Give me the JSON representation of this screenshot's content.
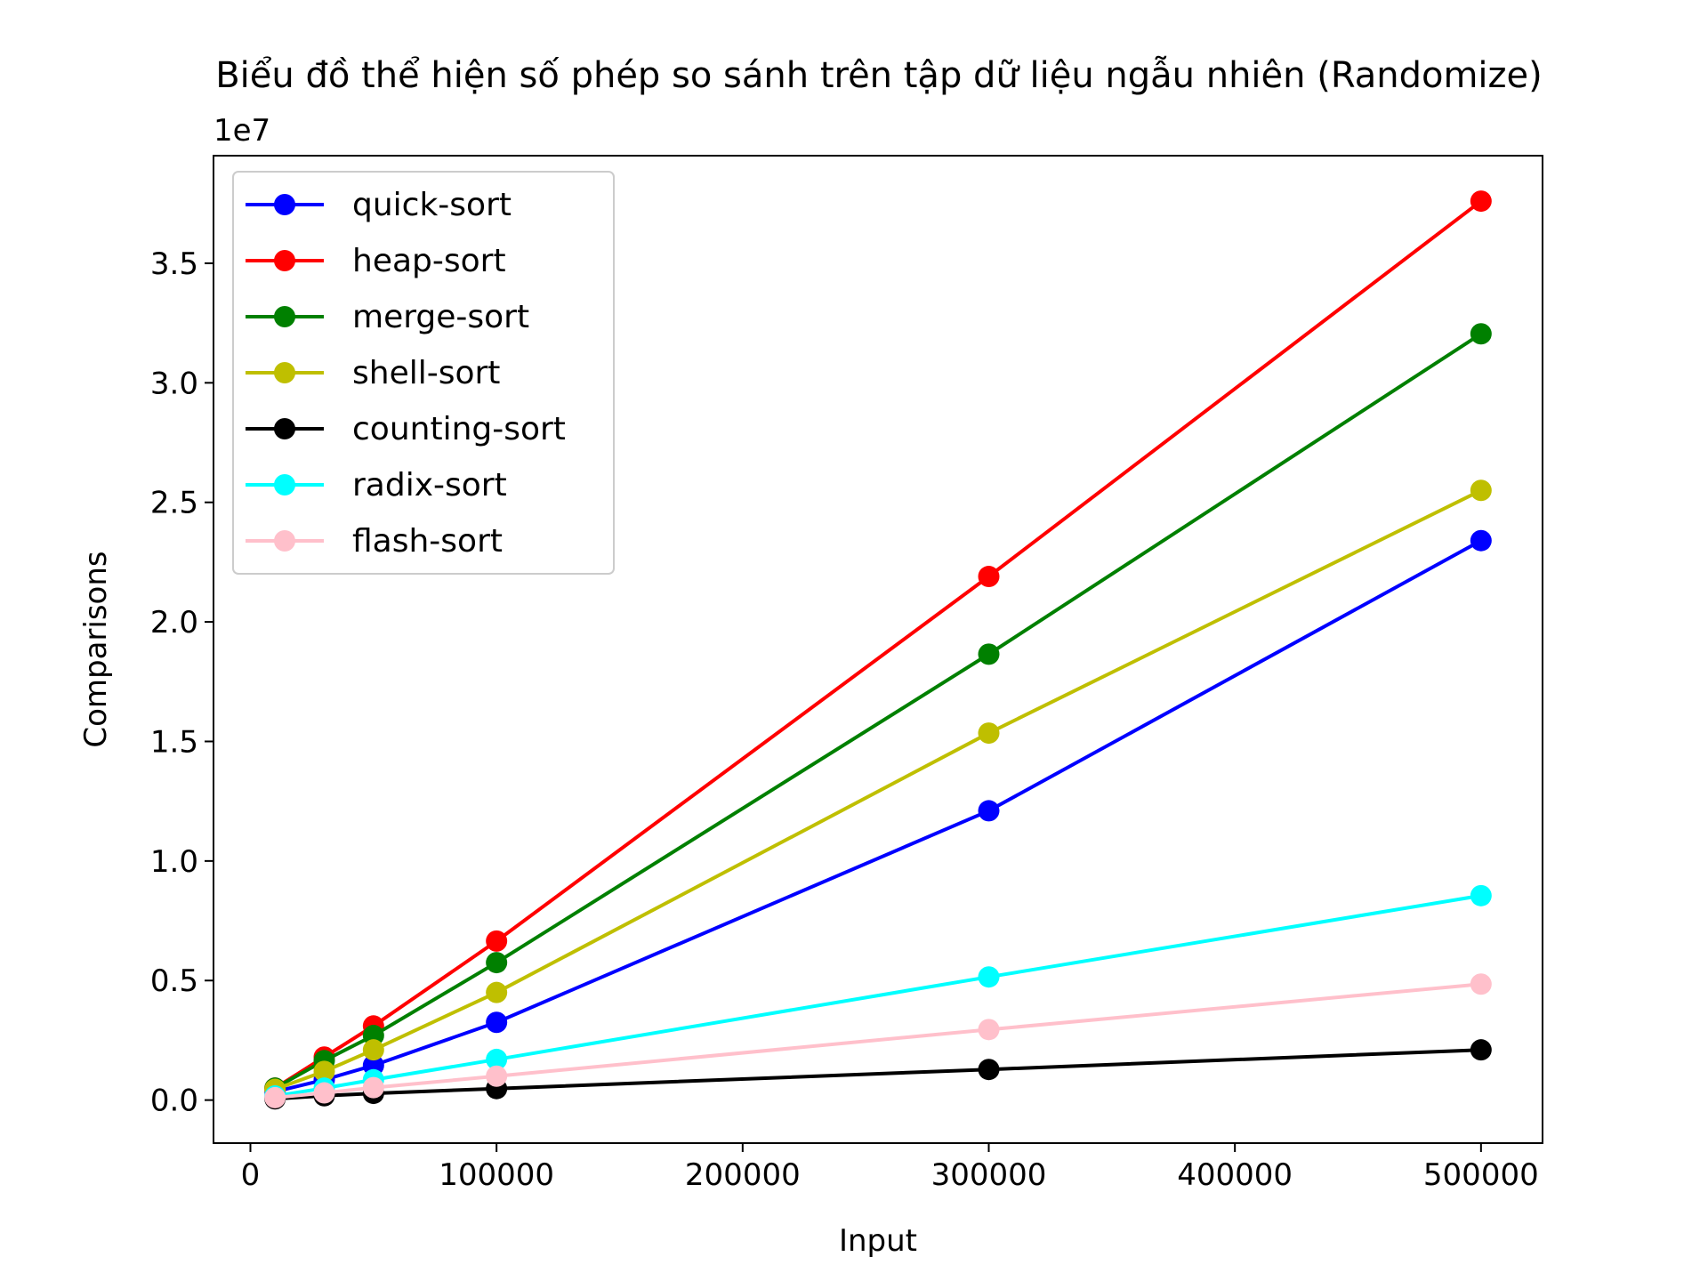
{
  "chart_data": {
    "type": "line",
    "title": "Biểu đồ thể hiện số phép so sánh trên tập dữ liệu ngẫu nhiên (Randomize)",
    "xlabel": "Input",
    "ylabel": "Comparisons",
    "y_offset_label": "1e7",
    "x": [
      10000,
      30000,
      50000,
      100000,
      300000,
      500000
    ],
    "xlim": [
      -15000,
      525000
    ],
    "ylim": [
      -1800000,
      39500000
    ],
    "x_ticks": [
      0,
      100000,
      200000,
      300000,
      400000,
      500000
    ],
    "x_tick_labels": [
      "0",
      "100000",
      "200000",
      "300000",
      "400000",
      "500000"
    ],
    "y_ticks": [
      0,
      5000000,
      10000000,
      15000000,
      20000000,
      25000000,
      30000000,
      35000000
    ],
    "y_tick_labels": [
      "0.0",
      "0.5",
      "1.0",
      "1.5",
      "2.0",
      "2.5",
      "3.0",
      "3.5"
    ],
    "grid": false,
    "legend_position": "top-left",
    "series": [
      {
        "name": "quick-sort",
        "color": "#0000ff",
        "values": [
          350000,
          850000,
          1450000,
          3250000,
          12100000,
          23400000
        ]
      },
      {
        "name": "heap-sort",
        "color": "#ff0000",
        "values": [
          500000,
          1800000,
          3100000,
          6650000,
          21900000,
          37600000
        ]
      },
      {
        "name": "merge-sort",
        "color": "#008000",
        "values": [
          500000,
          1650000,
          2700000,
          5750000,
          18650000,
          32050000
        ]
      },
      {
        "name": "shell-sort",
        "color": "#bfbf00",
        "values": [
          450000,
          1200000,
          2100000,
          4500000,
          15350000,
          25500000
        ]
      },
      {
        "name": "counting-sort",
        "color": "#000000",
        "values": [
          50000,
          180000,
          280000,
          480000,
          1280000,
          2100000
        ]
      },
      {
        "name": "radix-sort",
        "color": "#00ffff",
        "values": [
          170000,
          500000,
          850000,
          1700000,
          5150000,
          8550000
        ]
      },
      {
        "name": "flash-sort",
        "color": "#ffc0cb",
        "values": [
          100000,
          300000,
          520000,
          1000000,
          2950000,
          4850000
        ]
      }
    ]
  }
}
